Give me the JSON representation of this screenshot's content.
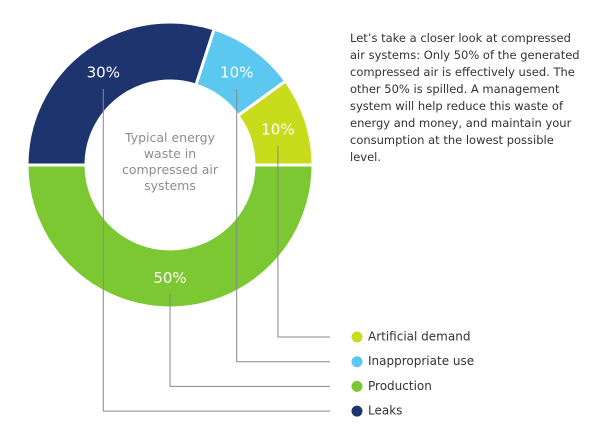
{
  "chart_data": {
    "type": "donut",
    "title": "Typical energy waste in compressed air systems",
    "description": "Let’s take a closer look at compressed air systems: Only 50% of the generated compressed air is effectively used. The other 50% is spilled. A management system will help reduce this waste of energy and money, and maintain your consumption at the lowest possible level.",
    "categories": [
      "Production",
      "Leaks",
      "Inappropriate use",
      "Artificial demand"
    ],
    "values": [
      50,
      30,
      10,
      10
    ],
    "value_labels": [
      "50%",
      "30%",
      "10%",
      "10%"
    ],
    "colors": [
      "#7cc832",
      "#1d346e",
      "#5cc8f0",
      "#c9dc1c"
    ]
  }
}
